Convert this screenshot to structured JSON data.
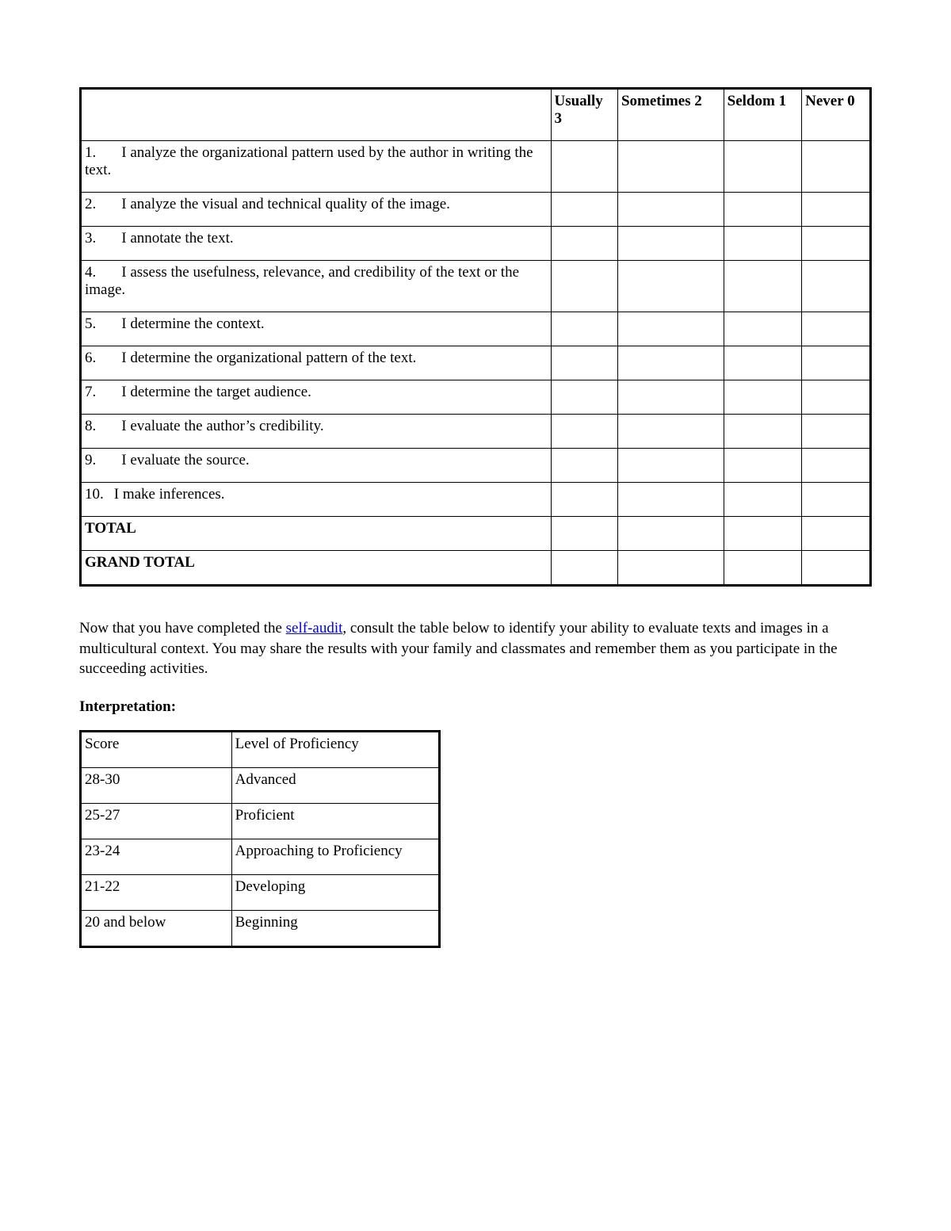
{
  "audit_table": {
    "headers": {
      "statement": "",
      "usually": "Usually 3",
      "sometimes": "Sometimes 2",
      "seldom": "Seldom 1",
      "never": "Never 0"
    },
    "rows": [
      {
        "num": "1.",
        "text": "I analyze the organizational pattern used by the author in writing the text."
      },
      {
        "num": "2.",
        "text": "I analyze the visual and technical quality of the image."
      },
      {
        "num": "3.",
        "text": "I annotate the text."
      },
      {
        "num": "4.",
        "text": "I assess the usefulness, relevance, and credibility of the text or the image."
      },
      {
        "num": "5.",
        "text": "I determine the context."
      },
      {
        "num": "6.",
        "text": "I determine the organizational pattern of the text."
      },
      {
        "num": "7.",
        "text": "I determine the target audience."
      },
      {
        "num": "8.",
        "text": "I evaluate the author’s credibility."
      },
      {
        "num": "9.",
        "text": "I evaluate the source."
      },
      {
        "num": "10.",
        "text": "I make inferences."
      }
    ],
    "total_label": "TOTAL",
    "grand_total_label": "GRAND TOTAL"
  },
  "paragraph": {
    "before_link": "Now that you have completed the ",
    "link_text": "self-audit",
    "after_link": ", consult the table below to identify your ability to evaluate texts and images in a multicultural context. You may share the results with your family and classmates and remember them as you participate in the succeeding activities."
  },
  "interpretation": {
    "label": "Interpretation:",
    "header": {
      "score": "Score",
      "level": "Level of Proficiency"
    },
    "rows": [
      {
        "score": "28-30",
        "level": "Advanced"
      },
      {
        "score": "25-27",
        "level": "Proficient"
      },
      {
        "score": "23-24",
        "level": "Approaching to Proficiency"
      },
      {
        "score": "21-22",
        "level": "Developing"
      },
      {
        "score": "20 and below",
        "level": "Beginning"
      }
    ]
  }
}
